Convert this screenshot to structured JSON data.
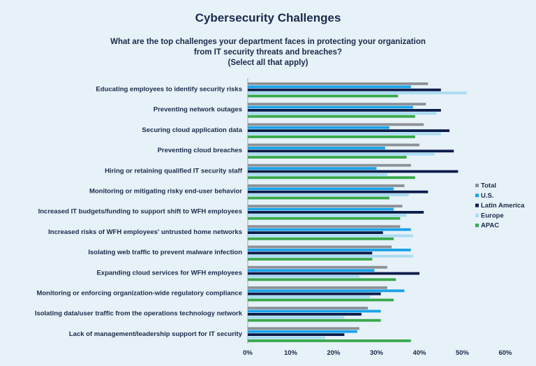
{
  "chart_data": {
    "type": "bar",
    "orientation": "horizontal",
    "title": "Cybersecurity Challenges",
    "subtitle": [
      "What are the top challenges your department faces in protecting your organization",
      "from IT security threats and breaches?",
      "(Select all that apply)"
    ],
    "categories": [
      "Educating employees to identify security risks",
      "Preventing network outages",
      "Securing cloud application data",
      "Preventing cloud breaches",
      "Hiring or retaining qualified IT security staff",
      "Monitoring or mitigating risky end-user behavior",
      "Increased IT budgets/funding to support shift to WFH employees",
      "Increased risks of WFH employees' untrusted home networks",
      "Isolating web traffic to prevent malware infection",
      "Expanding cloud services for WFH employees",
      "Monitoring or enforcing organization-wide regulatory compliance",
      "Isolating data/user traffic from the operations technology network",
      "Lack of management/leadership support for IT security"
    ],
    "series": [
      {
        "name": "Total",
        "color": "#8c9196",
        "values": [
          42,
          41.5,
          41,
          40,
          38,
          36.5,
          36,
          35.5,
          33.5,
          32.5,
          32.5,
          28,
          26
        ]
      },
      {
        "name": "U.S.",
        "color": "#1aa3e8",
        "values": [
          38,
          38.5,
          33,
          32,
          30,
          34,
          34,
          38,
          38,
          29.5,
          36.5,
          31,
          25.5
        ]
      },
      {
        "name": "Latin America",
        "color": "#0c1c4a",
        "values": [
          45,
          45,
          47,
          48,
          49,
          42,
          41,
          31.5,
          29,
          40,
          31,
          26.5,
          22.5
        ]
      },
      {
        "name": "Europe",
        "color": "#a9dcf2",
        "values": [
          51,
          44,
          45,
          43.5,
          32.5,
          37.5,
          37,
          38.5,
          38.5,
          26,
          28.5,
          22.5,
          18
        ]
      },
      {
        "name": "APAC",
        "color": "#3aa84c",
        "values": [
          35,
          39,
          39,
          37,
          39,
          33,
          35.5,
          34,
          29,
          34.5,
          34,
          31,
          38
        ]
      }
    ],
    "xlim": [
      0,
      60
    ],
    "xticks": [
      "0%",
      "10%",
      "20%",
      "30%",
      "40%",
      "50%",
      "60%"
    ],
    "legend": "right",
    "grid": false
  }
}
